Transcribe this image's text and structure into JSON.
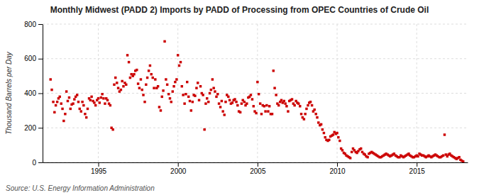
{
  "chart_data": {
    "type": "scatter",
    "title": "Monthly Midwest (PADD 2) Imports by PADD of Processing from OPEC Countries of Crude Oil",
    "y_label": "Thousand Barrels per Day",
    "source": "Source: U.S. Energy Information Administration",
    "color": "#cc0000",
    "marker": "square",
    "grid": true,
    "xlim": [
      1991.5,
      2018.2
    ],
    "xticks": [
      1995,
      2000,
      2005,
      2010,
      2015
    ],
    "ylim": [
      0,
      800
    ],
    "yticks": [
      0,
      200,
      400,
      600,
      800
    ],
    "x": [
      1992.0,
      1992.08,
      1992.17,
      1992.25,
      1992.33,
      1992.42,
      1992.5,
      1992.58,
      1992.67,
      1992.75,
      1992.83,
      1992.92,
      1993.0,
      1993.08,
      1993.17,
      1993.25,
      1993.33,
      1993.42,
      1993.5,
      1993.58,
      1993.67,
      1993.75,
      1993.83,
      1993.92,
      1994.0,
      1994.08,
      1994.17,
      1994.25,
      1994.33,
      1994.42,
      1994.5,
      1994.58,
      1994.67,
      1994.75,
      1994.83,
      1994.92,
      1995.0,
      1995.08,
      1995.17,
      1995.25,
      1995.33,
      1995.42,
      1995.5,
      1995.58,
      1995.67,
      1995.75,
      1995.83,
      1995.92,
      1996.0,
      1996.08,
      1996.17,
      1996.25,
      1996.33,
      1996.42,
      1996.5,
      1996.58,
      1996.67,
      1996.75,
      1996.83,
      1996.92,
      1997.0,
      1997.08,
      1997.17,
      1997.25,
      1997.33,
      1997.42,
      1997.5,
      1997.58,
      1997.67,
      1997.75,
      1997.83,
      1997.92,
      1998.0,
      1998.08,
      1998.17,
      1998.25,
      1998.33,
      1998.42,
      1998.5,
      1998.58,
      1998.67,
      1998.75,
      1998.83,
      1998.92,
      1999.0,
      1999.08,
      1999.17,
      1999.25,
      1999.33,
      1999.42,
      1999.5,
      1999.58,
      1999.67,
      1999.75,
      1999.83,
      1999.92,
      2000.0,
      2000.08,
      2000.17,
      2000.25,
      2000.33,
      2000.42,
      2000.5,
      2000.58,
      2000.67,
      2000.75,
      2000.83,
      2000.92,
      2001.0,
      2001.08,
      2001.17,
      2001.25,
      2001.33,
      2001.42,
      2001.5,
      2001.58,
      2001.67,
      2001.75,
      2001.83,
      2001.92,
      2002.0,
      2002.08,
      2002.17,
      2002.25,
      2002.33,
      2002.42,
      2002.5,
      2002.58,
      2002.67,
      2002.75,
      2002.83,
      2002.92,
      2003.0,
      2003.08,
      2003.17,
      2003.25,
      2003.33,
      2003.42,
      2003.5,
      2003.58,
      2003.67,
      2003.75,
      2003.83,
      2003.92,
      2004.0,
      2004.08,
      2004.17,
      2004.25,
      2004.33,
      2004.42,
      2004.5,
      2004.58,
      2004.67,
      2004.75,
      2004.83,
      2004.92,
      2005.0,
      2005.08,
      2005.17,
      2005.25,
      2005.33,
      2005.42,
      2005.5,
      2005.58,
      2005.67,
      2005.75,
      2005.83,
      2005.92,
      2006.0,
      2006.08,
      2006.17,
      2006.25,
      2006.33,
      2006.42,
      2006.5,
      2006.58,
      2006.67,
      2006.75,
      2006.83,
      2006.92,
      2007.0,
      2007.08,
      2007.17,
      2007.25,
      2007.33,
      2007.42,
      2007.5,
      2007.58,
      2007.67,
      2007.75,
      2007.83,
      2007.92,
      2008.0,
      2008.08,
      2008.17,
      2008.25,
      2008.33,
      2008.42,
      2008.5,
      2008.58,
      2008.67,
      2008.75,
      2008.83,
      2008.92,
      2009.0,
      2009.08,
      2009.17,
      2009.25,
      2009.33,
      2009.42,
      2009.5,
      2009.58,
      2009.67,
      2009.75,
      2009.83,
      2009.92,
      2010.0,
      2010.08,
      2010.17,
      2010.25,
      2010.33,
      2010.42,
      2010.5,
      2010.58,
      2010.67,
      2010.75,
      2010.83,
      2010.92,
      2011.0,
      2011.08,
      2011.17,
      2011.25,
      2011.33,
      2011.42,
      2011.5,
      2011.58,
      2011.67,
      2011.75,
      2011.83,
      2011.92,
      2012.0,
      2012.08,
      2012.17,
      2012.25,
      2012.33,
      2012.42,
      2012.5,
      2012.58,
      2012.67,
      2012.75,
      2012.83,
      2012.92,
      2013.0,
      2013.08,
      2013.17,
      2013.25,
      2013.33,
      2013.42,
      2013.5,
      2013.58,
      2013.67,
      2013.75,
      2013.83,
      2013.92,
      2014.0,
      2014.08,
      2014.17,
      2014.25,
      2014.33,
      2014.42,
      2014.5,
      2014.58,
      2014.67,
      2014.75,
      2014.83,
      2014.92,
      2015.0,
      2015.08,
      2015.17,
      2015.25,
      2015.33,
      2015.42,
      2015.5,
      2015.58,
      2015.67,
      2015.75,
      2015.83,
      2015.92,
      2016.0,
      2016.08,
      2016.17,
      2016.25,
      2016.33,
      2016.42,
      2016.5,
      2016.58,
      2016.67,
      2016.75,
      2016.83,
      2016.92,
      2017.0,
      2017.08,
      2017.17,
      2017.25,
      2017.33,
      2017.42,
      2017.5,
      2017.58,
      2017.67,
      2017.75,
      2017.83,
      2017.92
    ],
    "values": [
      480,
      420,
      350,
      290,
      330,
      350,
      370,
      380,
      340,
      310,
      240,
      280,
      410,
      355,
      375,
      310,
      335,
      340,
      365,
      380,
      390,
      350,
      310,
      295,
      350,
      330,
      280,
      260,
      310,
      370,
      360,
      380,
      355,
      345,
      330,
      360,
      370,
      345,
      375,
      395,
      370,
      340,
      370,
      360,
      340,
      330,
      200,
      190,
      450,
      490,
      460,
      430,
      410,
      420,
      470,
      440,
      460,
      450,
      620,
      580,
      490,
      510,
      500,
      510,
      530,
      535,
      455,
      430,
      480,
      420,
      390,
      350,
      450,
      490,
      530,
      560,
      510,
      490,
      430,
      480,
      430,
      440,
      320,
      300,
      380,
      415,
      700,
      480,
      450,
      395,
      370,
      350,
      410,
      440,
      465,
      480,
      620,
      560,
      580,
      440,
      390,
      340,
      395,
      465,
      380,
      355,
      300,
      350,
      390,
      385,
      430,
      460,
      360,
      440,
      400,
      390,
      190,
      340,
      370,
      350,
      400,
      420,
      480,
      430,
      410,
      380,
      395,
      340,
      320,
      355,
      295,
      275,
      350,
      390,
      380,
      360,
      340,
      345,
      360,
      365,
      350,
      330,
      295,
      290,
      340,
      360,
      350,
      330,
      340,
      375,
      380,
      390,
      365,
      325,
      295,
      285,
      465,
      395,
      340,
      280,
      330,
      325,
      295,
      330,
      295,
      325,
      280,
      280,
      530,
      430,
      390,
      340,
      330,
      350,
      360,
      345,
      355,
      340,
      325,
      295,
      355,
      360,
      365,
      340,
      330,
      355,
      345,
      340,
      325,
      280,
      260,
      250,
      280,
      310,
      330,
      345,
      350,
      330,
      295,
      305,
      280,
      260,
      230,
      215,
      220,
      190,
      170,
      145,
      130,
      125,
      130,
      150,
      155,
      160,
      175,
      165,
      170,
      145,
      125,
      80,
      70,
      55,
      50,
      40,
      35,
      30,
      25,
      60,
      80,
      70,
      60,
      55,
      65,
      75,
      80,
      60,
      50,
      45,
      35,
      30,
      50,
      55,
      60,
      55,
      50,
      45,
      40,
      35,
      30,
      30,
      35,
      40,
      45,
      50,
      45,
      40,
      35,
      40,
      45,
      50,
      40,
      35,
      30,
      30,
      40,
      35,
      30,
      35,
      40,
      45,
      50,
      40,
      35,
      30,
      30,
      35,
      40,
      35,
      50,
      45,
      40,
      40,
      35,
      30,
      35,
      40,
      35,
      30,
      35,
      40,
      45,
      40,
      35,
      30,
      30,
      35,
      40,
      160,
      45,
      35,
      45,
      50,
      40,
      35,
      30,
      25,
      20,
      25,
      30,
      15,
      10,
      5
    ]
  }
}
